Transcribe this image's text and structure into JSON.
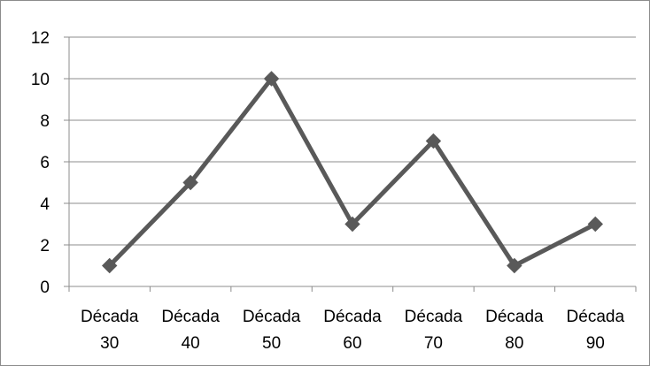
{
  "chart_data": {
    "type": "line",
    "categories": [
      [
        "Década",
        "30"
      ],
      [
        "Década",
        "40"
      ],
      [
        "Década",
        "50"
      ],
      [
        "Década",
        "60"
      ],
      [
        "Década",
        "70"
      ],
      [
        "Década",
        "80"
      ],
      [
        "Década",
        "90"
      ]
    ],
    "series": [
      {
        "values": [
          1,
          5,
          10,
          3,
          7,
          1,
          3
        ]
      }
    ],
    "yticks": [
      "0",
      "2",
      "4",
      "6",
      "8",
      "10",
      "12"
    ],
    "ylim": [
      0,
      12
    ],
    "grid": "horizontal",
    "legend": "none",
    "marker": "diamond",
    "colors": {
      "series": "#595959",
      "grid": "#8c8c8c",
      "axis": "#8c8c8c",
      "border": "#8c8c8c",
      "text": "#000000"
    }
  }
}
